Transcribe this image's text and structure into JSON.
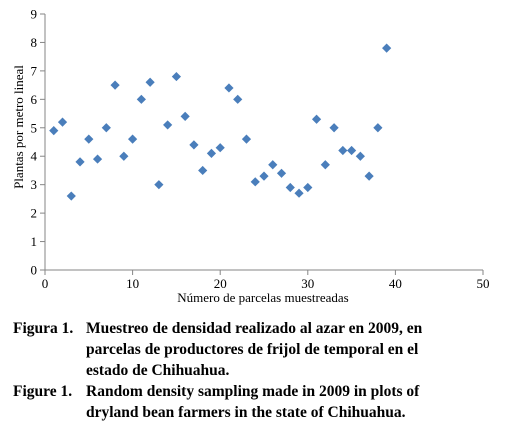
{
  "chart_data": {
    "type": "scatter",
    "xlabel": "Número de parcelas muestreadas",
    "ylabel": "Plantas por metro lineal",
    "xlim": [
      0,
      50
    ],
    "ylim": [
      0,
      9
    ],
    "x_ticks": [
      0,
      10,
      20,
      30,
      40,
      50
    ],
    "y_ticks": [
      0,
      1,
      2,
      3,
      4,
      5,
      6,
      7,
      8,
      9
    ],
    "marker": "diamond",
    "marker_color": "#4a7ebb",
    "grid": false,
    "legend": "none",
    "series": [
      {
        "x": [
          1,
          2,
          3,
          4,
          5,
          6,
          7,
          8,
          9,
          10,
          11,
          12,
          13,
          14,
          15,
          16,
          17,
          18,
          19,
          20,
          21,
          22,
          23,
          24,
          25,
          26,
          27,
          28,
          29,
          30,
          31,
          32,
          33,
          34,
          35,
          36,
          37,
          38,
          39
        ],
        "y": [
          4.9,
          5.2,
          2.6,
          3.8,
          4.6,
          3.9,
          5.0,
          6.5,
          4.0,
          4.6,
          6.0,
          6.6,
          3.0,
          5.1,
          6.8,
          5.4,
          4.4,
          3.5,
          4.1,
          4.3,
          6.4,
          6.0,
          4.6,
          3.1,
          3.3,
          3.7,
          3.4,
          2.9,
          2.7,
          2.9,
          5.3,
          3.7,
          5.0,
          4.2,
          4.2,
          4.0,
          3.3,
          5.0,
          7.8
        ]
      }
    ]
  },
  "caption": {
    "es_prefix": "Figura 1.",
    "es_lines": [
      "Muestreo de densidad realizado al azar en 2009, en",
      "parcelas de productores de frijol de temporal en el",
      "estado de Chihuahua."
    ],
    "en_prefix": "Figure 1.",
    "en_lines": [
      "Random density sampling made in 2009 in plots of",
      "dryland bean farmers in the state of Chihuahua."
    ]
  }
}
